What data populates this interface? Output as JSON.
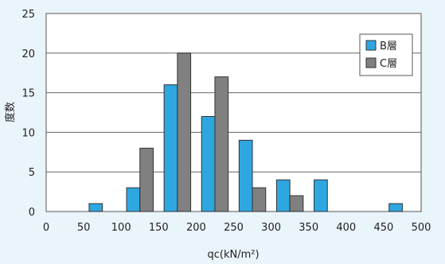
{
  "chart_data": {
    "type": "bar",
    "xlabel": "qc(kN/m²)",
    "ylabel": "度数",
    "xlim": [
      0,
      500
    ],
    "ylim": [
      0,
      25
    ],
    "xticks": [
      "0",
      "50",
      "100",
      "150",
      "200",
      "250",
      "300",
      "350",
      "400",
      "450",
      "500"
    ],
    "yticks": [
      "0",
      "5",
      "10",
      "15",
      "20",
      "25"
    ],
    "grid": "horizontal",
    "legend_position": "top-right",
    "bin_starts": [
      50,
      100,
      150,
      200,
      250,
      300,
      350,
      400,
      450
    ],
    "bin_width": 50,
    "series": [
      {
        "name": "B層",
        "color": "#2ea7e0",
        "values": [
          1,
          3,
          16,
          12,
          9,
          4,
          4,
          0,
          1
        ]
      },
      {
        "name": "C層",
        "color": "#808080",
        "values": [
          0,
          8,
          20,
          17,
          3,
          2,
          0,
          0,
          0
        ]
      }
    ]
  }
}
